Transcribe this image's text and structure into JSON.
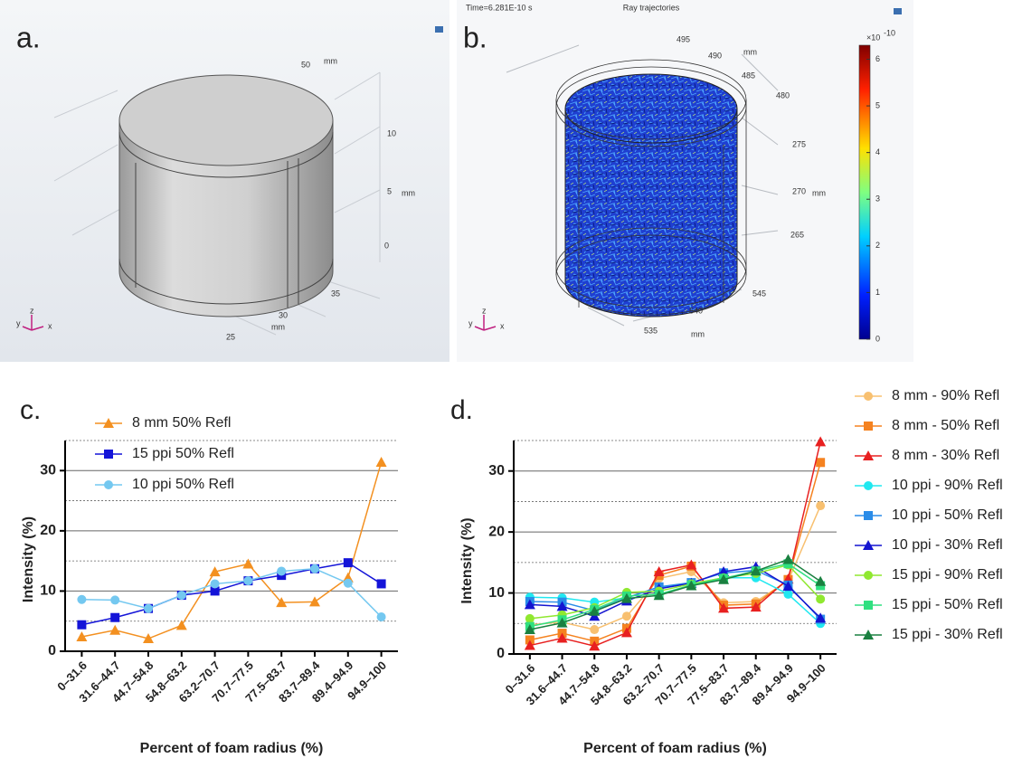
{
  "panels": {
    "a": {
      "label": "a.",
      "axis_labels": [
        "50",
        "mm",
        "10",
        "5",
        "mm",
        "0",
        "35",
        "30",
        "mm",
        "25"
      ],
      "triad": [
        "y",
        "z",
        "x"
      ]
    },
    "b": {
      "label": "b.",
      "time": "Time=6.281E-10 s",
      "title": "Ray trajectories",
      "axis_labels": [
        "495",
        "490",
        "mm",
        "485",
        "480",
        "275",
        "270",
        "mm",
        "265",
        "545",
        "540",
        "535",
        "mm"
      ],
      "triad": [
        "y",
        "z",
        "x"
      ],
      "colorbar": {
        "unit": "×10",
        "exponent": "-10",
        "lim": [
          0,
          6.3
        ],
        "ticks": [
          0,
          1,
          2,
          3,
          4,
          5,
          6
        ]
      }
    }
  },
  "chart_data": [
    {
      "type": "line",
      "panel_label": "c.",
      "y_label": "Intensity (%)",
      "x_label": "Percent of foam radius (%)",
      "categories": [
        "0–31.6",
        "31.6–44.7",
        "44.7–54.8",
        "54.8–63.2",
        "63.2–70.7",
        "70.7–77.5",
        "77.5–83.7",
        "83.7–89.4",
        "89.4–94.9",
        "94.9–100"
      ],
      "ylim": [
        0,
        35
      ],
      "yticks": [
        0,
        10,
        20,
        30
      ],
      "grid": true,
      "minor_grid": [
        5,
        15,
        25,
        35
      ],
      "legend": "upper left",
      "series": [
        {
          "name": "8 mm 50% Refl",
          "color": "#f39020",
          "marker": "triangle",
          "values": [
            2.4,
            3.5,
            2.1,
            4.3,
            13.2,
            14.5,
            8.1,
            8.2,
            12.2,
            31.4
          ]
        },
        {
          "name": "15 ppi 50% Refl",
          "color": "#1414d8",
          "marker": "square",
          "values": [
            4.4,
            5.6,
            7.1,
            9.3,
            10.0,
            11.7,
            12.6,
            13.7,
            14.7,
            11.2
          ]
        },
        {
          "name": "10 ppi 50% Refl",
          "color": "#74c8f0",
          "marker": "circle",
          "values": [
            8.6,
            8.5,
            7.1,
            9.3,
            11.2,
            11.7,
            13.3,
            13.7,
            11.3,
            5.7
          ]
        }
      ]
    },
    {
      "type": "line",
      "panel_label": "d.",
      "y_label": "Intensity (%)",
      "x_label": "Percent of foam radius (%)",
      "categories": [
        "0–31.6",
        "31.6–44.7",
        "44.7–54.8",
        "54.8–63.2",
        "63.2–70.7",
        "70.7–77.5",
        "77.5–83.7",
        "83.7–89.4",
        "89.4–94.9",
        "94.9–100"
      ],
      "ylim": [
        0,
        35
      ],
      "yticks": [
        0,
        10,
        20,
        30
      ],
      "grid": true,
      "minor_grid": [
        5,
        15,
        25,
        35
      ],
      "legend": "right",
      "series": [
        {
          "name": "8 mm - 90% Refl",
          "color": "#f8c070",
          "marker": "circle",
          "values": [
            4.8,
            5.2,
            4.0,
            6.2,
            12.4,
            13.5,
            8.4,
            8.6,
            12.0,
            24.3
          ]
        },
        {
          "name": "8 mm - 50% Refl",
          "color": "#f58220",
          "marker": "square",
          "values": [
            2.3,
            3.4,
            2.1,
            4.2,
            12.9,
            14.4,
            8.0,
            8.2,
            12.2,
            31.4
          ]
        },
        {
          "name": "8 mm - 30% Refl",
          "color": "#e82020",
          "marker": "triangle",
          "values": [
            1.4,
            2.6,
            1.3,
            3.5,
            13.5,
            14.6,
            7.5,
            7.7,
            12.3,
            34.8
          ]
        },
        {
          "name": "10 ppi - 90% Refl",
          "color": "#20e8f0",
          "marker": "circle",
          "values": [
            9.3,
            9.2,
            8.5,
            9.2,
            11.0,
            11.5,
            12.5,
            12.5,
            9.8,
            5.0
          ]
        },
        {
          "name": "10 ppi - 50% Refl",
          "color": "#2a8ce8",
          "marker": "square",
          "values": [
            8.6,
            8.5,
            7.1,
            9.2,
            11.0,
            11.7,
            13.3,
            13.7,
            11.3,
            5.7
          ]
        },
        {
          "name": "10 ppi - 30% Refl",
          "color": "#1414d0",
          "marker": "triangle",
          "values": [
            8.1,
            7.8,
            6.2,
            8.7,
            10.7,
            11.6,
            13.5,
            14.3,
            11.1,
            5.9
          ]
        },
        {
          "name": "15 ppi - 90% Refl",
          "color": "#90e830",
          "marker": "circle",
          "values": [
            5.8,
            6.4,
            7.6,
            10.1,
            10.3,
            11.5,
            12.5,
            13.2,
            14.6,
            9.0
          ]
        },
        {
          "name": "15 ppi - 50% Refl",
          "color": "#30e080",
          "marker": "square",
          "values": [
            4.5,
            5.6,
            7.3,
            9.5,
            9.8,
            11.3,
            12.4,
            13.6,
            14.8,
            11.2
          ]
        },
        {
          "name": "15 ppi - 30% Refl",
          "color": "#1a8040",
          "marker": "triangle",
          "values": [
            4.0,
            5.1,
            7.0,
            9.1,
            9.6,
            11.2,
            12.2,
            13.6,
            15.5,
            11.9
          ]
        }
      ]
    }
  ]
}
